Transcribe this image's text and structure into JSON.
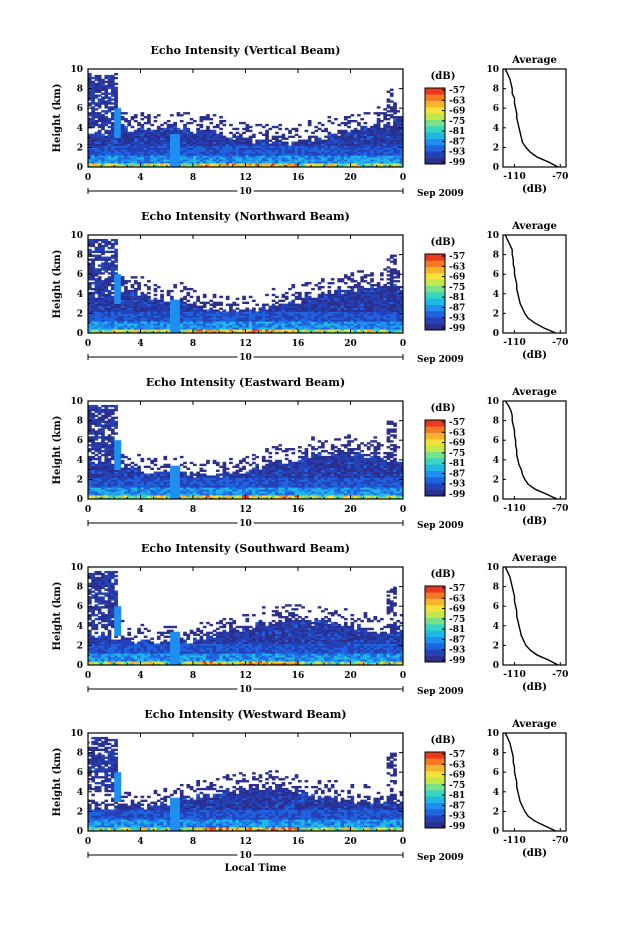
{
  "colors": {
    "scale": [
      "#2b2f8e",
      "#2442b8",
      "#1f63e0",
      "#1e8ff0",
      "#22b8e6",
      "#36d6c0",
      "#7ae08a",
      "#c2e84a",
      "#f4e23a",
      "#f8b42a",
      "#f47a22",
      "#e83a1e"
    ],
    "background": "#ffffff",
    "axis": "#000000"
  },
  "chart_data": [
    {
      "type": "heatmap",
      "title": "Echo Intensity (Vertical Beam)",
      "ylabel": "Height (km)",
      "xticks": [
        "0",
        "4",
        "8",
        "12",
        "16",
        "20",
        "0"
      ],
      "yticks": [
        "0",
        "2",
        "4",
        "6",
        "8",
        "10"
      ],
      "xlim": [
        0,
        24
      ],
      "ylim": [
        0,
        10
      ],
      "date_label": "10",
      "date_suffix": "Sep 2009",
      "colorbar": {
        "unit": "(dB)",
        "ticks": [
          "-57",
          "-63",
          "-69",
          "-75",
          "-81",
          "-87",
          "-93",
          "-99"
        ]
      },
      "profile": {
        "title": "Average",
        "xlabel": "(dB)",
        "xticks": [
          "-110",
          "-70"
        ],
        "yticks": [
          "0",
          "2",
          "4",
          "6",
          "8",
          "10"
        ],
        "height_km": [
          0,
          0.5,
          1,
          1.5,
          2,
          2.5,
          3,
          3.5,
          4,
          4.5,
          5,
          5.5,
          6,
          6.5,
          7,
          7.5,
          8,
          8.5,
          9,
          9.5,
          10
        ],
        "db": [
          -72,
          -80,
          -90,
          -96,
          -100,
          -103,
          -104,
          -105,
          -106,
          -107,
          -108,
          -108,
          -109,
          -110,
          -110,
          -112,
          -112,
          -113,
          -114,
          -116,
          -118
        ]
      }
    },
    {
      "type": "heatmap",
      "title": "Echo Intensity (Northward Beam)",
      "ylabel": "Height (km)",
      "xticks": [
        "0",
        "4",
        "8",
        "12",
        "16",
        "20",
        "0"
      ],
      "yticks": [
        "0",
        "2",
        "4",
        "6",
        "8",
        "10"
      ],
      "xlim": [
        0,
        24
      ],
      "ylim": [
        0,
        10
      ],
      "date_label": "10",
      "date_suffix": "Sep 2009",
      "colorbar": {
        "unit": "(dB)",
        "ticks": [
          "-57",
          "-63",
          "-69",
          "-75",
          "-81",
          "-87",
          "-93",
          "-99"
        ]
      },
      "profile": {
        "title": "Average",
        "xlabel": "(dB)",
        "xticks": [
          "-110",
          "-70"
        ],
        "yticks": [
          "0",
          "2",
          "4",
          "6",
          "8",
          "10"
        ],
        "height_km": [
          0,
          0.5,
          1,
          1.5,
          2,
          2.5,
          3,
          3.5,
          4,
          4.5,
          5,
          5.5,
          6,
          6.5,
          7,
          7.5,
          8,
          8.5,
          9,
          9.5,
          10
        ],
        "db": [
          -74,
          -84,
          -92,
          -98,
          -101,
          -103,
          -105,
          -106,
          -107,
          -108,
          -108,
          -109,
          -110,
          -110,
          -111,
          -111,
          -112,
          -112,
          -114,
          -116,
          -118
        ]
      }
    },
    {
      "type": "heatmap",
      "title": "Echo Intensity (Eastward Beam)",
      "ylabel": "Height (km)",
      "xticks": [
        "0",
        "4",
        "8",
        "12",
        "16",
        "20",
        "0"
      ],
      "yticks": [
        "0",
        "2",
        "4",
        "6",
        "8",
        "10"
      ],
      "xlim": [
        0,
        24
      ],
      "ylim": [
        0,
        10
      ],
      "date_label": "10",
      "date_suffix": "Sep 2009",
      "colorbar": {
        "unit": "(dB)",
        "ticks": [
          "-57",
          "-63",
          "-69",
          "-75",
          "-81",
          "-87",
          "-93",
          "-99"
        ]
      },
      "profile": {
        "title": "Average",
        "xlabel": "(dB)",
        "xticks": [
          "-110",
          "-70"
        ],
        "yticks": [
          "0",
          "2",
          "4",
          "6",
          "8",
          "10"
        ],
        "height_km": [
          0,
          0.5,
          1,
          1.5,
          2,
          2.5,
          3,
          3.5,
          4,
          4.5,
          5,
          5.5,
          6,
          6.5,
          7,
          7.5,
          8,
          8.5,
          9,
          9.5,
          10
        ],
        "db": [
          -73,
          -82,
          -92,
          -98,
          -101,
          -103,
          -104,
          -106,
          -107,
          -108,
          -108,
          -109,
          -109,
          -110,
          -110,
          -111,
          -112,
          -112,
          -113,
          -115,
          -118
        ]
      }
    },
    {
      "type": "heatmap",
      "title": "Echo Intensity (Southward Beam)",
      "ylabel": "Height (km)",
      "xticks": [
        "0",
        "4",
        "8",
        "12",
        "16",
        "20",
        "0"
      ],
      "yticks": [
        "0",
        "2",
        "4",
        "6",
        "8",
        "10"
      ],
      "xlim": [
        0,
        24
      ],
      "ylim": [
        0,
        10
      ],
      "date_label": "10",
      "date_suffix": "Sep 2009",
      "colorbar": {
        "unit": "(dB)",
        "ticks": [
          "-57",
          "-63",
          "-69",
          "-75",
          "-81",
          "-87",
          "-93",
          "-99"
        ]
      },
      "profile": {
        "title": "Average",
        "xlabel": "(dB)",
        "xticks": [
          "-110",
          "-70"
        ],
        "yticks": [
          "0",
          "2",
          "4",
          "6",
          "8",
          "10"
        ],
        "height_km": [
          0,
          0.5,
          1,
          1.5,
          2,
          2.5,
          3,
          3.5,
          4,
          4.5,
          5,
          5.5,
          6,
          6.5,
          7,
          7.5,
          8,
          8.5,
          9,
          9.5,
          10
        ],
        "db": [
          -72,
          -80,
          -90,
          -96,
          -100,
          -102,
          -104,
          -105,
          -106,
          -107,
          -108,
          -108,
          -109,
          -110,
          -110,
          -111,
          -112,
          -113,
          -114,
          -116,
          -118
        ]
      }
    },
    {
      "type": "heatmap",
      "title": "Echo Intensity (Westward Beam)",
      "ylabel": "Height (km)",
      "xlabel": "Local Time",
      "xticks": [
        "0",
        "4",
        "8",
        "12",
        "16",
        "20",
        "0"
      ],
      "yticks": [
        "0",
        "2",
        "4",
        "6",
        "8",
        "10"
      ],
      "xlim": [
        0,
        24
      ],
      "ylim": [
        0,
        10
      ],
      "date_label": "10",
      "date_suffix": "Sep 2009",
      "colorbar": {
        "unit": "(dB)",
        "ticks": [
          "-57",
          "-63",
          "-69",
          "-75",
          "-81",
          "-87",
          "-93",
          "-99"
        ]
      },
      "profile": {
        "title": "Average",
        "xlabel": "(dB)",
        "xticks": [
          "-110",
          "-70"
        ],
        "yticks": [
          "0",
          "2",
          "4",
          "6",
          "8",
          "10"
        ],
        "height_km": [
          0,
          0.5,
          1,
          1.5,
          2,
          2.5,
          3,
          3.5,
          4,
          4.5,
          5,
          5.5,
          6,
          6.5,
          7,
          7.5,
          8,
          8.5,
          9,
          9.5,
          10
        ],
        "db": [
          -74,
          -83,
          -92,
          -98,
          -101,
          -103,
          -105,
          -106,
          -107,
          -108,
          -108,
          -109,
          -110,
          -110,
          -111,
          -111,
          -112,
          -113,
          -114,
          -116,
          -118
        ]
      }
    }
  ]
}
